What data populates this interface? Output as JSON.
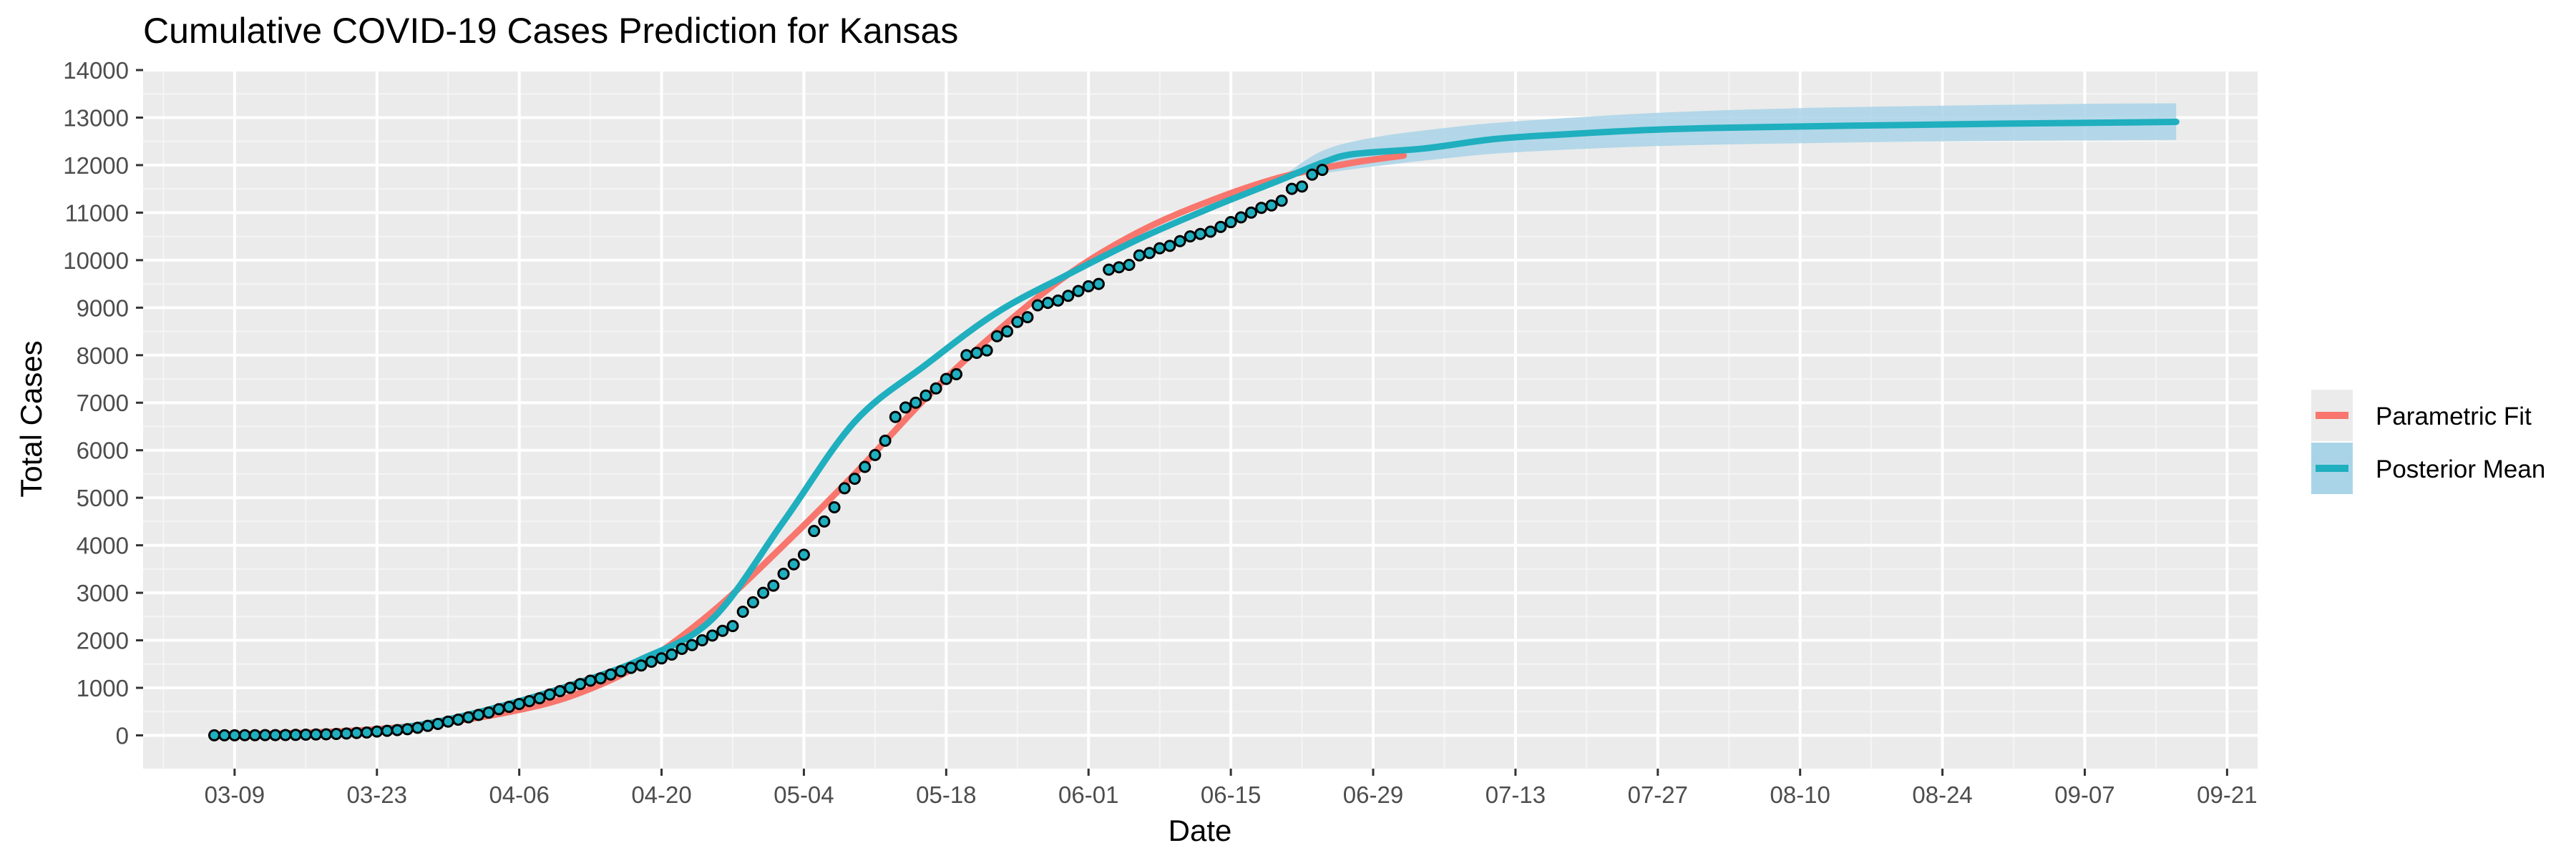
{
  "chart_data": {
    "type": "line",
    "title": "Cumulative COVID-19 Cases Prediction for Kansas",
    "xlabel": "Date",
    "ylabel": "Total Cases",
    "x_axis": {
      "type": "date",
      "tick_format": "MM-DD",
      "ticks": [
        "2020-03-09",
        "2020-03-23",
        "2020-04-06",
        "2020-04-20",
        "2020-05-04",
        "2020-05-18",
        "2020-06-01",
        "2020-06-15",
        "2020-06-29",
        "2020-07-13",
        "2020-07-27",
        "2020-08-10",
        "2020-08-24",
        "2020-09-07",
        "2020-09-21"
      ],
      "tick_labels": [
        "03-09",
        "03-23",
        "04-06",
        "04-20",
        "05-04",
        "05-18",
        "06-01",
        "06-15",
        "06-29",
        "07-13",
        "07-27",
        "08-10",
        "08-24",
        "09-07",
        "09-21"
      ],
      "range": [
        "2020-02-29",
        "2020-09-24"
      ]
    },
    "y_axis": {
      "ticks": [
        0,
        1000,
        2000,
        3000,
        4000,
        5000,
        6000,
        7000,
        8000,
        9000,
        10000,
        11000,
        12000,
        13000,
        14000
      ],
      "ylim": [
        -700,
        14000
      ]
    },
    "grid": true,
    "background": "gray",
    "legend": {
      "placement": "right",
      "entries": [
        {
          "label": "Parametric Fit",
          "color": "#F8766D"
        },
        {
          "label": "Posterior Mean",
          "color": "#1FAFBF"
        }
      ]
    },
    "series": [
      {
        "name": "Parametric Fit",
        "kind": "line",
        "color": "#F8766D",
        "points": [
          [
            "2020-03-07",
            15
          ],
          [
            "2020-03-14",
            40
          ],
          [
            "2020-03-21",
            100
          ],
          [
            "2020-03-28",
            230
          ],
          [
            "2020-04-04",
            450
          ],
          [
            "2020-04-11",
            820
          ],
          [
            "2020-04-18",
            1500
          ],
          [
            "2020-04-25",
            2600
          ],
          [
            "2020-05-02",
            4000
          ],
          [
            "2020-05-09",
            5500
          ],
          [
            "2020-05-16",
            7100
          ],
          [
            "2020-05-23",
            8500
          ],
          [
            "2020-05-30",
            9700
          ],
          [
            "2020-06-06",
            10600
          ],
          [
            "2020-06-13",
            11250
          ],
          [
            "2020-06-20",
            11750
          ],
          [
            "2020-06-27",
            12050
          ],
          [
            "2020-07-02",
            12200
          ]
        ]
      },
      {
        "name": "Posterior Mean",
        "kind": "line",
        "color": "#1FAFBF",
        "points": [
          [
            "2020-03-07",
            0
          ],
          [
            "2020-03-14",
            15
          ],
          [
            "2020-03-21",
            60
          ],
          [
            "2020-03-28",
            250
          ],
          [
            "2020-04-04",
            600
          ],
          [
            "2020-04-11",
            1050
          ],
          [
            "2020-04-18",
            1600
          ],
          [
            "2020-04-25",
            2450
          ],
          [
            "2020-05-02",
            4500
          ],
          [
            "2020-05-09",
            6600
          ],
          [
            "2020-05-16",
            7800
          ],
          [
            "2020-05-23",
            8900
          ],
          [
            "2020-05-30",
            9700
          ],
          [
            "2020-06-06",
            10450
          ],
          [
            "2020-06-13",
            11100
          ],
          [
            "2020-06-20",
            11700
          ],
          [
            "2020-06-24",
            12050
          ],
          [
            "2020-06-27",
            12230
          ],
          [
            "2020-07-04",
            12350
          ],
          [
            "2020-07-11",
            12550
          ],
          [
            "2020-07-18",
            12650
          ],
          [
            "2020-07-25",
            12730
          ],
          [
            "2020-08-01",
            12780
          ],
          [
            "2020-08-15",
            12830
          ],
          [
            "2020-08-29",
            12870
          ],
          [
            "2020-09-12",
            12900
          ],
          [
            "2020-09-16",
            12910
          ]
        ]
      },
      {
        "name": "Posterior Mean band",
        "kind": "ribbon",
        "color": "#A9D4E8",
        "lower": [
          [
            "2020-06-20",
            11750
          ],
          [
            "2020-06-24",
            11830
          ],
          [
            "2020-06-29",
            11970
          ],
          [
            "2020-07-06",
            12140
          ],
          [
            "2020-07-13",
            12270
          ],
          [
            "2020-07-27",
            12400
          ],
          [
            "2020-08-10",
            12460
          ],
          [
            "2020-08-24",
            12500
          ],
          [
            "2020-09-07",
            12520
          ],
          [
            "2020-09-16",
            12530
          ]
        ],
        "upper": [
          [
            "2020-06-20",
            11750
          ],
          [
            "2020-06-24",
            12300
          ],
          [
            "2020-06-29",
            12580
          ],
          [
            "2020-07-06",
            12780
          ],
          [
            "2020-07-13",
            12920
          ],
          [
            "2020-07-27",
            13100
          ],
          [
            "2020-08-10",
            13200
          ],
          [
            "2020-08-24",
            13250
          ],
          [
            "2020-09-07",
            13290
          ],
          [
            "2020-09-16",
            13300
          ]
        ]
      },
      {
        "name": "Observed",
        "kind": "points",
        "color": "#1FAFBF",
        "points": [
          [
            "2020-03-07",
            1
          ],
          [
            "2020-03-08",
            1
          ],
          [
            "2020-03-09",
            2
          ],
          [
            "2020-03-10",
            3
          ],
          [
            "2020-03-11",
            4
          ],
          [
            "2020-03-12",
            5
          ],
          [
            "2020-03-13",
            6
          ],
          [
            "2020-03-14",
            8
          ],
          [
            "2020-03-15",
            10
          ],
          [
            "2020-03-16",
            14
          ],
          [
            "2020-03-17",
            18
          ],
          [
            "2020-03-18",
            22
          ],
          [
            "2020-03-19",
            30
          ],
          [
            "2020-03-20",
            40
          ],
          [
            "2020-03-21",
            50
          ],
          [
            "2020-03-22",
            60
          ],
          [
            "2020-03-23",
            80
          ],
          [
            "2020-03-24",
            95
          ],
          [
            "2020-03-25",
            110
          ],
          [
            "2020-03-26",
            130
          ],
          [
            "2020-03-27",
            160
          ],
          [
            "2020-03-28",
            200
          ],
          [
            "2020-03-29",
            240
          ],
          [
            "2020-03-30",
            290
          ],
          [
            "2020-03-31",
            330
          ],
          [
            "2020-04-01",
            380
          ],
          [
            "2020-04-02",
            430
          ],
          [
            "2020-04-03",
            480
          ],
          [
            "2020-04-04",
            550
          ],
          [
            "2020-04-05",
            600
          ],
          [
            "2020-04-06",
            660
          ],
          [
            "2020-04-07",
            720
          ],
          [
            "2020-04-08",
            780
          ],
          [
            "2020-04-09",
            860
          ],
          [
            "2020-04-10",
            930
          ],
          [
            "2020-04-11",
            1000
          ],
          [
            "2020-04-12",
            1080
          ],
          [
            "2020-04-13",
            1150
          ],
          [
            "2020-04-14",
            1200
          ],
          [
            "2020-04-15",
            1280
          ],
          [
            "2020-04-16",
            1350
          ],
          [
            "2020-04-17",
            1420
          ],
          [
            "2020-04-18",
            1470
          ],
          [
            "2020-04-19",
            1550
          ],
          [
            "2020-04-20",
            1620
          ],
          [
            "2020-04-21",
            1700
          ],
          [
            "2020-04-22",
            1820
          ],
          [
            "2020-04-23",
            1900
          ],
          [
            "2020-04-24",
            2000
          ],
          [
            "2020-04-25",
            2100
          ],
          [
            "2020-04-26",
            2200
          ],
          [
            "2020-04-27",
            2300
          ],
          [
            "2020-04-28",
            2600
          ],
          [
            "2020-04-29",
            2800
          ],
          [
            "2020-04-30",
            3000
          ],
          [
            "2020-05-01",
            3150
          ],
          [
            "2020-05-02",
            3400
          ],
          [
            "2020-05-03",
            3600
          ],
          [
            "2020-05-04",
            3800
          ],
          [
            "2020-05-05",
            4300
          ],
          [
            "2020-05-06",
            4500
          ],
          [
            "2020-05-07",
            4800
          ],
          [
            "2020-05-08",
            5200
          ],
          [
            "2020-05-09",
            5400
          ],
          [
            "2020-05-10",
            5650
          ],
          [
            "2020-05-11",
            5900
          ],
          [
            "2020-05-12",
            6200
          ],
          [
            "2020-05-13",
            6700
          ],
          [
            "2020-05-14",
            6900
          ],
          [
            "2020-05-15",
            7000
          ],
          [
            "2020-05-16",
            7150
          ],
          [
            "2020-05-17",
            7300
          ],
          [
            "2020-05-18",
            7500
          ],
          [
            "2020-05-19",
            7600
          ],
          [
            "2020-05-20",
            8000
          ],
          [
            "2020-05-21",
            8050
          ],
          [
            "2020-05-22",
            8100
          ],
          [
            "2020-05-23",
            8400
          ],
          [
            "2020-05-24",
            8500
          ],
          [
            "2020-05-25",
            8700
          ],
          [
            "2020-05-26",
            8800
          ],
          [
            "2020-05-27",
            9050
          ],
          [
            "2020-05-28",
            9100
          ],
          [
            "2020-05-29",
            9150
          ],
          [
            "2020-05-30",
            9250
          ],
          [
            "2020-05-31",
            9350
          ],
          [
            "2020-06-01",
            9450
          ],
          [
            "2020-06-02",
            9500
          ],
          [
            "2020-06-03",
            9800
          ],
          [
            "2020-06-04",
            9850
          ],
          [
            "2020-06-05",
            9900
          ],
          [
            "2020-06-06",
            10100
          ],
          [
            "2020-06-07",
            10150
          ],
          [
            "2020-06-08",
            10250
          ],
          [
            "2020-06-09",
            10300
          ],
          [
            "2020-06-10",
            10400
          ],
          [
            "2020-06-11",
            10500
          ],
          [
            "2020-06-12",
            10550
          ],
          [
            "2020-06-13",
            10600
          ],
          [
            "2020-06-14",
            10700
          ],
          [
            "2020-06-15",
            10800
          ],
          [
            "2020-06-16",
            10900
          ],
          [
            "2020-06-17",
            11000
          ],
          [
            "2020-06-18",
            11100
          ],
          [
            "2020-06-19",
            11150
          ],
          [
            "2020-06-20",
            11250
          ],
          [
            "2020-06-21",
            11500
          ],
          [
            "2020-06-22",
            11550
          ],
          [
            "2020-06-23",
            11800
          ],
          [
            "2020-06-24",
            11900
          ]
        ]
      }
    ]
  }
}
